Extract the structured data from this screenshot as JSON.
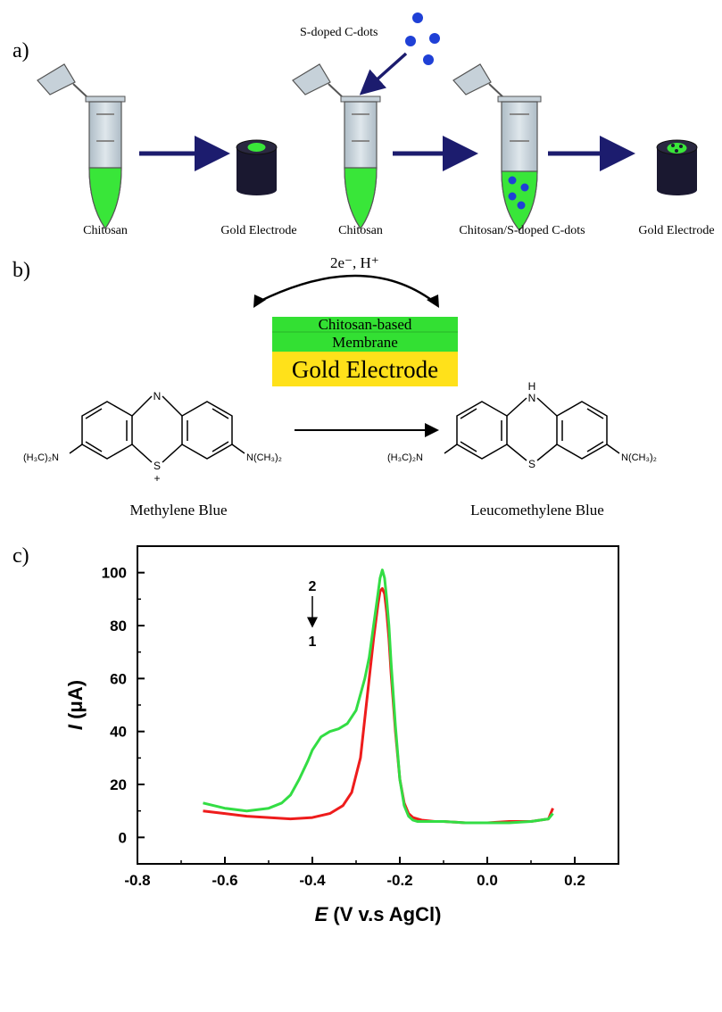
{
  "panels": {
    "a": {
      "letter": "a)",
      "cdots_label": "S-doped C-dots",
      "step1_tube_label": "Chitosan",
      "step1_electrode_label": "Gold Electrode",
      "step2_tube_label": "Chitosan",
      "step2_mixture_label": "Chitosan/S-doped C-dots",
      "step2_electrode_label": "Gold Electrode",
      "colors": {
        "chitosan": "#39e639",
        "dots": "#1f40d6",
        "arrow": "#1c1c6e",
        "electrode": "#1a1830",
        "tube": "#c9d4db"
      }
    },
    "b": {
      "letter": "b)",
      "electron_label": "2e⁻, H⁺",
      "membrane_line1": "Chitosan-based",
      "membrane_line2": "Membrane",
      "electrode_label": "Gold Electrode",
      "reactant_name": "Methylene Blue",
      "product_name": "Leucomethylene Blue",
      "reactant_left_group": "(H₃C)₂N",
      "reactant_right_group": "N(CH₃)₂",
      "product_left_group": "(H₃C)₂N",
      "product_right_group": "N(CH₃)₂",
      "ring_n_label": "N",
      "ring_nh_label": "H",
      "ring_s_label": "S",
      "ring_s_plus_label": "S",
      "charge_label": "+",
      "colors": {
        "membrane": "#33e033",
        "electrode": "#ffe11a"
      }
    },
    "c": {
      "letter": "c)",
      "curve_label_top": "2",
      "curve_label_bottom": "1"
    }
  },
  "chart_data": {
    "type": "line",
    "title": "",
    "xlabel_italic": "E",
    "xlabel_rest": "(V v.s AgCl)",
    "ylabel_italic": "I",
    "ylabel_rest": "(μA)",
    "xlim": [
      -0.8,
      0.3
    ],
    "ylim": [
      -10,
      110
    ],
    "xticks": [
      -0.8,
      -0.6,
      -0.4,
      -0.2,
      0.0,
      0.2
    ],
    "xtick_labels": [
      "-0.8",
      "-0.6",
      "-0.4",
      "-0.2",
      "0.0",
      "0.2"
    ],
    "yticks": [
      0,
      20,
      40,
      60,
      80,
      100
    ],
    "ytick_labels": [
      "0",
      "20",
      "40",
      "60",
      "80",
      "100"
    ],
    "grid": false,
    "series": [
      {
        "name": "1",
        "color": "#ee1c1c",
        "x": [
          -0.65,
          -0.6,
          -0.55,
          -0.5,
          -0.45,
          -0.4,
          -0.36,
          -0.33,
          -0.31,
          -0.29,
          -0.28,
          -0.27,
          -0.26,
          -0.25,
          -0.245,
          -0.24,
          -0.235,
          -0.23,
          -0.225,
          -0.22,
          -0.21,
          -0.2,
          -0.19,
          -0.18,
          -0.17,
          -0.16,
          -0.15,
          -0.12,
          -0.1,
          -0.05,
          0.0,
          0.05,
          0.1,
          0.14,
          0.15
        ],
        "y": [
          10,
          9,
          8,
          7.5,
          7,
          7.5,
          9,
          12,
          17,
          30,
          45,
          60,
          75,
          88,
          93,
          94,
          92,
          85,
          75,
          62,
          40,
          22,
          13,
          9,
          7.5,
          7,
          6.5,
          6,
          6,
          5.5,
          5.5,
          6,
          6,
          7,
          11
        ]
      },
      {
        "name": "2",
        "color": "#33dd44",
        "x": [
          -0.65,
          -0.6,
          -0.55,
          -0.5,
          -0.47,
          -0.45,
          -0.43,
          -0.41,
          -0.4,
          -0.38,
          -0.36,
          -0.34,
          -0.32,
          -0.3,
          -0.28,
          -0.27,
          -0.26,
          -0.25,
          -0.245,
          -0.24,
          -0.235,
          -0.23,
          -0.225,
          -0.22,
          -0.21,
          -0.2,
          -0.19,
          -0.18,
          -0.17,
          -0.16,
          -0.15,
          -0.12,
          -0.1,
          -0.05,
          0.0,
          0.05,
          0.1,
          0.14,
          0.15
        ],
        "y": [
          13,
          11,
          10,
          11,
          13,
          16,
          22,
          29,
          33,
          38,
          40,
          41,
          43,
          48,
          60,
          68,
          80,
          92,
          98,
          101,
          98,
          90,
          80,
          66,
          42,
          22,
          12,
          8,
          6.5,
          6,
          6,
          6,
          6,
          5.5,
          5.5,
          5.5,
          6,
          7,
          9
        ]
      }
    ]
  }
}
